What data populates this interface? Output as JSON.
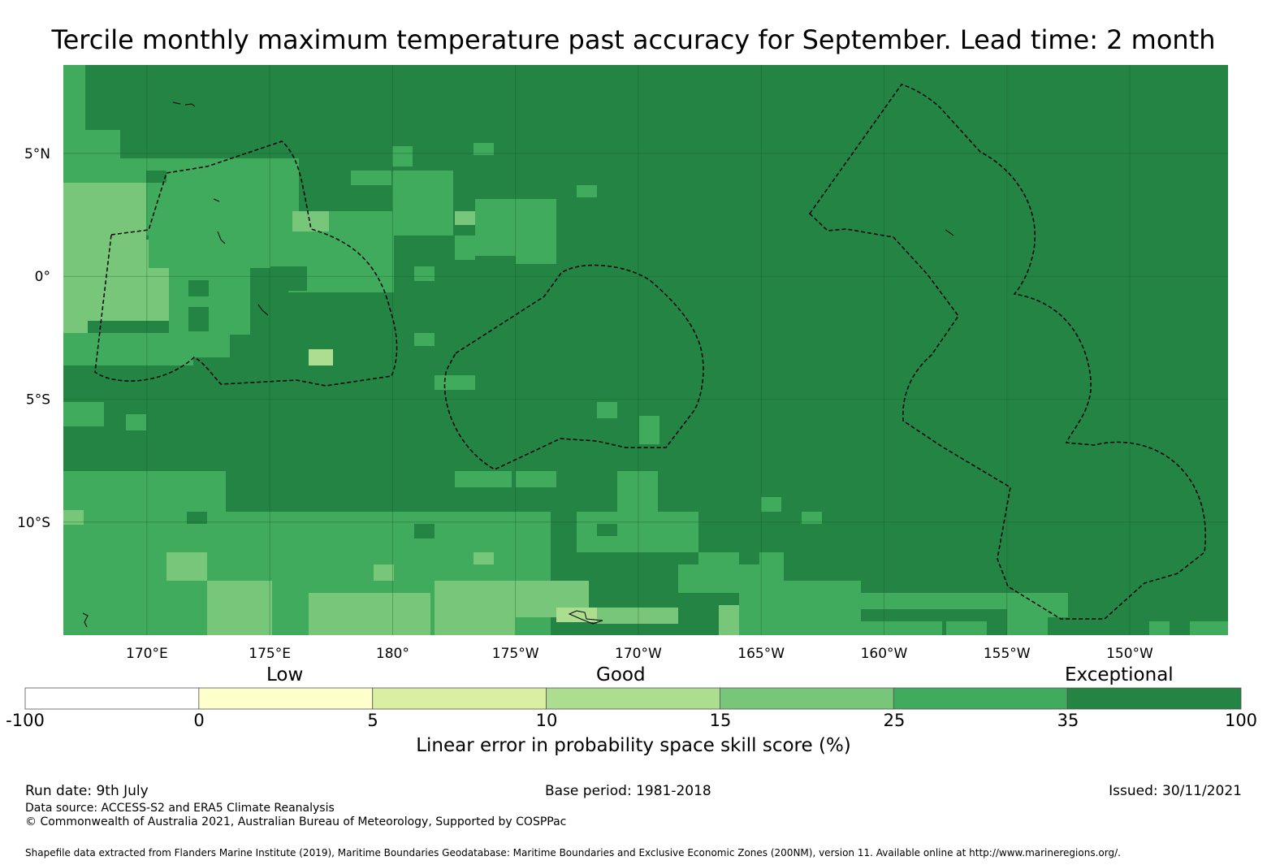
{
  "title": "Tercile monthly maximum temperature past accuracy for September. Lead time: 2 month",
  "map": {
    "lon_labels": [
      "170°E",
      "175°E",
      "180°",
      "175°W",
      "170°W",
      "165°W",
      "160°W",
      "155°W",
      "150°W"
    ],
    "lat_labels": [
      "5°N",
      "0°",
      "5°S",
      "10°S"
    ],
    "lon_values": [
      170,
      175,
      180,
      185,
      190,
      195,
      200,
      205,
      210
    ],
    "lat_values": [
      5,
      0,
      -5,
      -10
    ],
    "lon_range": [
      166.6,
      214.0
    ],
    "lat_range": [
      -14.6,
      8.6
    ],
    "colors": {
      "c0": "#ffffff",
      "c1": "#ffffcc",
      "c2": "#d9f0a3",
      "c3": "#addd8e",
      "c4": "#78c679",
      "c5": "#41ab5d",
      "c6": "#238443"
    }
  },
  "colorbar": {
    "categories": [
      "Low",
      "Good",
      "Exceptional"
    ],
    "ticks": [
      "-100",
      "0",
      "5",
      "10",
      "15",
      "25",
      "35",
      "100"
    ],
    "colors": [
      "#ffffff",
      "#ffffcc",
      "#d9f0a3",
      "#addd8e",
      "#78c679",
      "#41ab5d",
      "#238443"
    ],
    "label": "Linear error in probability space skill score (%)"
  },
  "footer": {
    "run_date": "Run date: 9th July",
    "base_period": "Base period: 1981-2018",
    "issued": "Issued: 30/11/2021",
    "data_source": "Data source: ACCESS-S2 and ERA5 Climate Reanalysis",
    "copyright": "© Commonwealth of Australia 2021, Australian Bureau of Meteorology, Supported by COSPPac",
    "shapefile": "Shapefile data extracted from Flanders Marine Institute (2019), Maritime Boundaries Geodatabase: Maritime Boundaries and Exclusive Economic Zones (200NM), version 11. Available online at http://www.marineregions.org/."
  }
}
